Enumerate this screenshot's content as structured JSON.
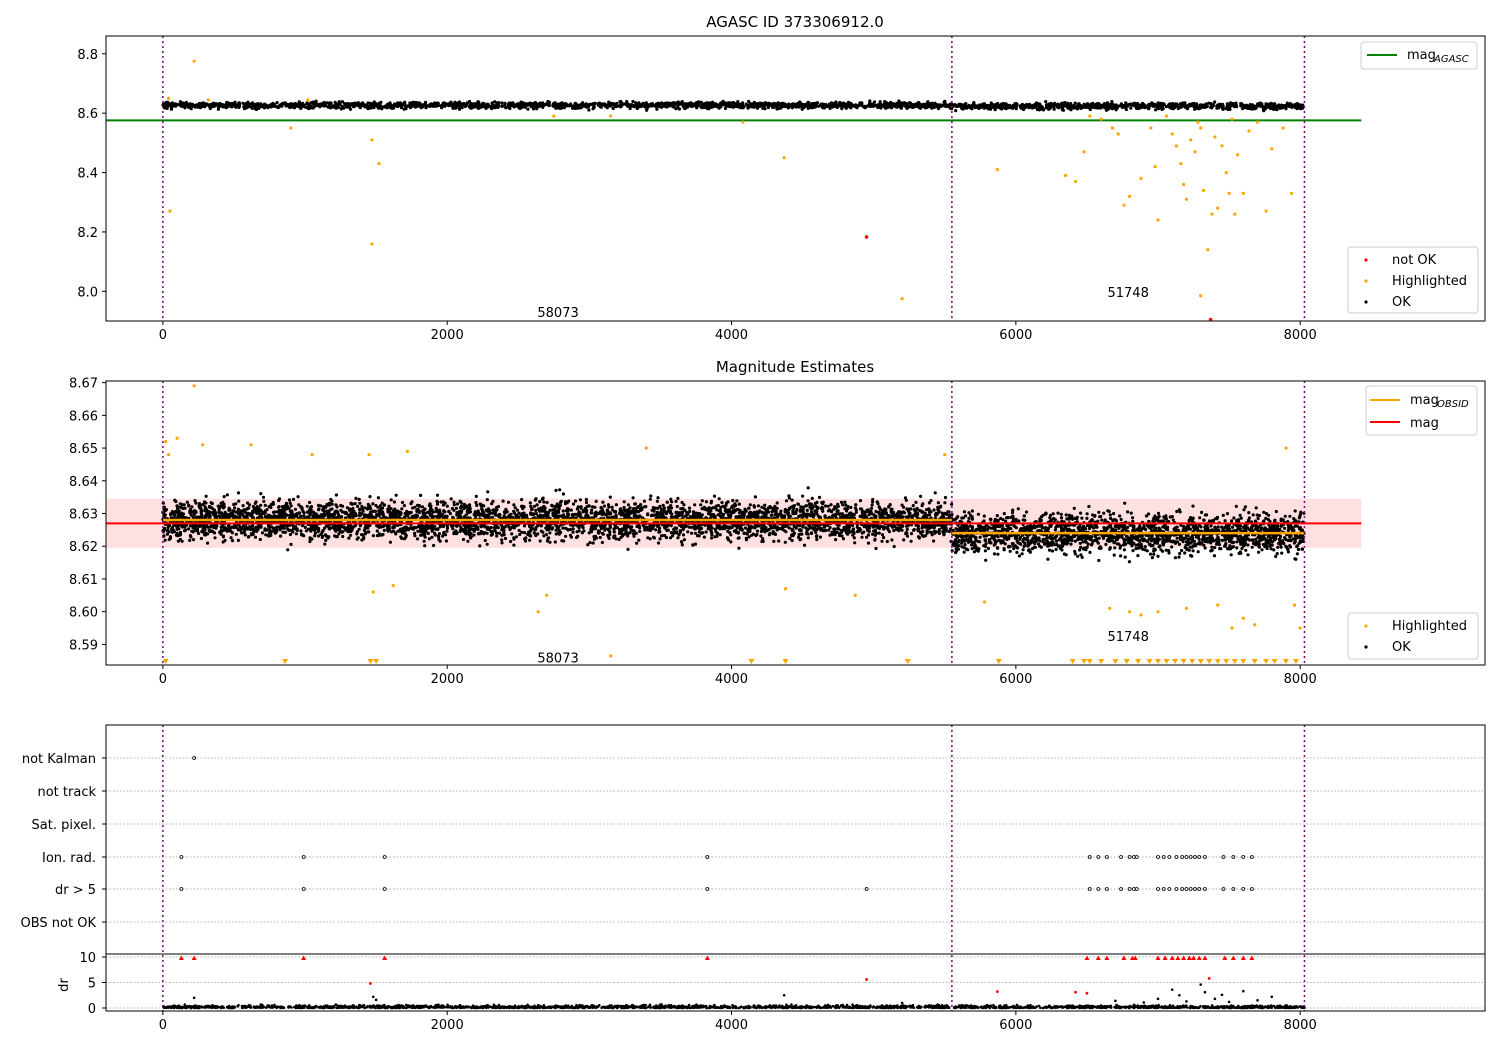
{
  "chart_data": [
    {
      "type": "scatter",
      "title": "AGASC ID 373306912.0",
      "xlim": [
        -400,
        9300
      ],
      "ylim": [
        7.9,
        8.86
      ],
      "xticks": [
        0,
        2000,
        4000,
        6000,
        8000
      ],
      "yticks": [
        "8.0",
        "8.2",
        "8.4",
        "8.6",
        "8.8"
      ],
      "vlines": [
        0,
        5550,
        8030
      ],
      "hline": {
        "name": "magAGASC",
        "value": 8.576,
        "color": "#008000"
      },
      "obsid_labels": [
        {
          "text": "58073",
          "x": 2780,
          "y": 7.93
        },
        {
          "text": "51748",
          "x": 6790,
          "y": 7.997
        }
      ],
      "legend_top": [
        {
          "name": "mag",
          "sub": "AGASC",
          "color": "#008000"
        }
      ],
      "legend_bottom": [
        {
          "name": "not OK",
          "color": "#ff0000"
        },
        {
          "name": "Highlighted",
          "color": "#ffa500"
        },
        {
          "name": "OK",
          "color": "#000000"
        }
      ],
      "series": [
        {
          "name": "OK",
          "color": "#000000",
          "band_segments": [
            {
              "x0": 0,
              "x1": 5550,
              "center": 8.627,
              "spread": 0.012
            },
            {
              "x0": 5550,
              "x1": 8030,
              "center": 8.624,
              "spread": 0.012
            }
          ]
        },
        {
          "name": "Highlighted",
          "color": "#ffa500",
          "points": [
            [
              40,
              8.65
            ],
            [
              50,
              8.27
            ],
            [
              220,
              8.775
            ],
            [
              320,
              8.645
            ],
            [
              900,
              8.55
            ],
            [
              1020,
              8.645
            ],
            [
              1470,
              8.51
            ],
            [
              1470,
              8.16
            ],
            [
              1520,
              8.43
            ],
            [
              2750,
              8.59
            ],
            [
              3150,
              8.59
            ],
            [
              4080,
              8.57
            ],
            [
              4370,
              8.45
            ],
            [
              5200,
              7.975
            ],
            [
              5870,
              8.41
            ],
            [
              6350,
              8.39
            ],
            [
              6420,
              8.37
            ],
            [
              6480,
              8.47
            ],
            [
              6520,
              8.59
            ],
            [
              6600,
              8.58
            ],
            [
              6680,
              8.55
            ],
            [
              6720,
              8.53
            ],
            [
              6760,
              8.29
            ],
            [
              6800,
              8.32
            ],
            [
              6880,
              8.38
            ],
            [
              6950,
              8.55
            ],
            [
              6980,
              8.42
            ],
            [
              7000,
              8.24
            ],
            [
              7060,
              8.59
            ],
            [
              7100,
              8.53
            ],
            [
              7130,
              8.49
            ],
            [
              7160,
              8.43
            ],
            [
              7180,
              8.36
            ],
            [
              7200,
              8.31
            ],
            [
              7230,
              8.51
            ],
            [
              7260,
              8.47
            ],
            [
              7280,
              8.57
            ],
            [
              7300,
              8.55
            ],
            [
              7320,
              8.34
            ],
            [
              7350,
              8.14
            ],
            [
              7380,
              8.26
            ],
            [
              7400,
              8.52
            ],
            [
              7420,
              8.28
            ],
            [
              7450,
              8.49
            ],
            [
              7480,
              8.4
            ],
            [
              7500,
              8.33
            ],
            [
              7520,
              8.58
            ],
            [
              7540,
              8.26
            ],
            [
              7560,
              8.46
            ],
            [
              7600,
              8.33
            ],
            [
              7640,
              8.54
            ],
            [
              7700,
              8.57
            ],
            [
              7760,
              8.27
            ],
            [
              7800,
              8.48
            ],
            [
              7880,
              8.55
            ],
            [
              7940,
              8.33
            ],
            [
              7300,
              7.985
            ]
          ]
        },
        {
          "name": "not OK",
          "color": "#ff0000",
          "points": [
            [
              4950,
              8.183
            ],
            [
              7370,
              7.905
            ]
          ]
        }
      ]
    },
    {
      "type": "scatter",
      "title": "Magnitude Estimates",
      "xlim": [
        -400,
        9300
      ],
      "ylim": [
        8.5837,
        8.6705
      ],
      "xticks": [
        0,
        2000,
        4000,
        6000,
        8000
      ],
      "yticks": [
        "8.59",
        "8.60",
        "8.61",
        "8.62",
        "8.63",
        "8.64",
        "8.65",
        "8.66",
        "8.67"
      ],
      "vlines": [
        0,
        5550,
        8030
      ],
      "mag_line": {
        "name": "mag",
        "value": 8.627,
        "band": [
          8.6195,
          8.6345
        ],
        "color": "#ff0000"
      },
      "mag_obsid_segments": [
        {
          "x0": 0,
          "x1": 5550,
          "value": 8.628
        },
        {
          "x0": 5550,
          "x1": 8030,
          "value": 8.624
        }
      ],
      "obsid_labels": [
        {
          "text": "58073",
          "x": 2780,
          "y": 8.586
        },
        {
          "text": "51748",
          "x": 6790,
          "y": 8.5925
        }
      ],
      "legend_top": [
        {
          "name": "mag",
          "sub": "OBSID",
          "color": "#ffa500"
        },
        {
          "name": "mag",
          "sub": "",
          "color": "#ff0000"
        }
      ],
      "legend_bottom": [
        {
          "name": "Highlighted",
          "color": "#ffa500"
        },
        {
          "name": "OK",
          "color": "#000000"
        }
      ],
      "series": [
        {
          "name": "OK",
          "color": "#000000",
          "band_segments": [
            {
              "x0": 0,
              "x1": 5550,
              "center": 8.628,
              "spread": 0.0065
            },
            {
              "x0": 5550,
              "x1": 8030,
              "center": 8.624,
              "spread": 0.0068
            }
          ]
        },
        {
          "name": "Highlighted",
          "color": "#ffa500",
          "points": [
            [
              20,
              8.652
            ],
            [
              40,
              8.648
            ],
            [
              100,
              8.653
            ],
            [
              220,
              8.669
            ],
            [
              280,
              8.651
            ],
            [
              620,
              8.651
            ],
            [
              1050,
              8.648
            ],
            [
              1450,
              8.648
            ],
            [
              1480,
              8.606
            ],
            [
              1620,
              8.608
            ],
            [
              1720,
              8.649
            ],
            [
              2700,
              8.605
            ],
            [
              2640,
              8.6
            ],
            [
              3400,
              8.65
            ],
            [
              4380,
              8.607
            ],
            [
              4870,
              8.605
            ],
            [
              5500,
              8.648
            ],
            [
              5780,
              8.603
            ],
            [
              6660,
              8.601
            ],
            [
              6800,
              8.6
            ],
            [
              6880,
              8.599
            ],
            [
              7000,
              8.6
            ],
            [
              7200,
              8.601
            ],
            [
              7420,
              8.602
            ],
            [
              7520,
              8.595
            ],
            [
              7600,
              8.598
            ],
            [
              7680,
              8.596
            ],
            [
              7900,
              8.65
            ],
            [
              7960,
              8.602
            ],
            [
              8000,
              8.595
            ],
            [
              3150,
              8.5865
            ]
          ]
        },
        {
          "name": "Highlighted-clipped",
          "color": "#ffa500",
          "points": [
            [
              20,
              8.5837
            ],
            [
              860,
              8.5837
            ],
            [
              1460,
              8.5837
            ],
            [
              1500,
              8.5837
            ],
            [
              4140,
              8.5837
            ],
            [
              4380,
              8.5837
            ],
            [
              5240,
              8.5837
            ],
            [
              5880,
              8.5837
            ],
            [
              6400,
              8.5837
            ],
            [
              6480,
              8.5837
            ],
            [
              6520,
              8.5837
            ],
            [
              6600,
              8.5837
            ],
            [
              6700,
              8.5837
            ],
            [
              6780,
              8.5837
            ],
            [
              6860,
              8.5837
            ],
            [
              6940,
              8.5837
            ],
            [
              7000,
              8.5837
            ],
            [
              7060,
              8.5837
            ],
            [
              7120,
              8.5837
            ],
            [
              7180,
              8.5837
            ],
            [
              7240,
              8.5837
            ],
            [
              7300,
              8.5837
            ],
            [
              7360,
              8.5837
            ],
            [
              7420,
              8.5837
            ],
            [
              7480,
              8.5837
            ],
            [
              7540,
              8.5837
            ],
            [
              7600,
              8.5837
            ],
            [
              7680,
              8.5837
            ],
            [
              7760,
              8.5837
            ],
            [
              7820,
              8.5837
            ],
            [
              7900,
              8.5837
            ],
            [
              7970,
              8.5837
            ]
          ]
        }
      ]
    },
    {
      "type": "scatter",
      "title": "",
      "xlim": [
        -400,
        9300
      ],
      "categories": [
        "not Kalman",
        "not track",
        "Sat. pixel.",
        "Ion. rad.",
        "dr > 5",
        "OBS not OK"
      ],
      "vlines": [
        0,
        5550,
        8030
      ],
      "flags": {
        "not Kalman": [
          220
        ],
        "not track": [],
        "Sat. pixel.": [],
        "Ion. rad.": [
          130,
          990,
          1560,
          3830,
          6520,
          6580,
          6640,
          6740,
          6800,
          6830,
          6850,
          7000,
          7040,
          7080,
          7130,
          7170,
          7200,
          7230,
          7260,
          7290,
          7330,
          7460,
          7530,
          7600,
          7660
        ],
        "dr > 5": [
          130,
          990,
          1560,
          3830,
          4950,
          6520,
          6580,
          6640,
          6740,
          6800,
          6830,
          6850,
          7000,
          7040,
          7080,
          7130,
          7170,
          7200,
          7230,
          7260,
          7290,
          7330,
          7460,
          7530,
          7600,
          7660
        ],
        "OBS not OK": []
      },
      "dr_axis": {
        "ylabel": "dr",
        "ylim": [
          0,
          10
        ],
        "yticks": [
          "0",
          "5",
          "10"
        ]
      },
      "dr_clipped": [
        130,
        220,
        990,
        1560,
        3830,
        6500,
        6580,
        6640,
        6760,
        6820,
        6840,
        7000,
        7050,
        7100,
        7140,
        7180,
        7220,
        7250,
        7290,
        7330,
        7470,
        7530,
        7600,
        7660
      ],
      "dr_red": [
        [
          1460,
          4.8
        ],
        [
          4950,
          5.6
        ],
        [
          5870,
          3.2
        ],
        [
          6420,
          3.1
        ],
        [
          6500,
          2.9
        ],
        [
          7360,
          5.8
        ]
      ],
      "dr_points": [
        [
          220,
          2.0
        ],
        [
          1480,
          2.2
        ],
        [
          1500,
          1.6
        ],
        [
          4370,
          2.5
        ],
        [
          5200,
          1.0
        ],
        [
          6700,
          1.4
        ],
        [
          6900,
          1.1
        ],
        [
          7000,
          1.8
        ],
        [
          7100,
          3.6
        ],
        [
          7150,
          2.5
        ],
        [
          7200,
          1.3
        ],
        [
          7300,
          4.6
        ],
        [
          7330,
          3.1
        ],
        [
          7400,
          1.8
        ],
        [
          7450,
          2.6
        ],
        [
          7500,
          1.2
        ],
        [
          7600,
          3.3
        ],
        [
          7700,
          1.5
        ],
        [
          7800,
          2.2
        ]
      ]
    }
  ]
}
